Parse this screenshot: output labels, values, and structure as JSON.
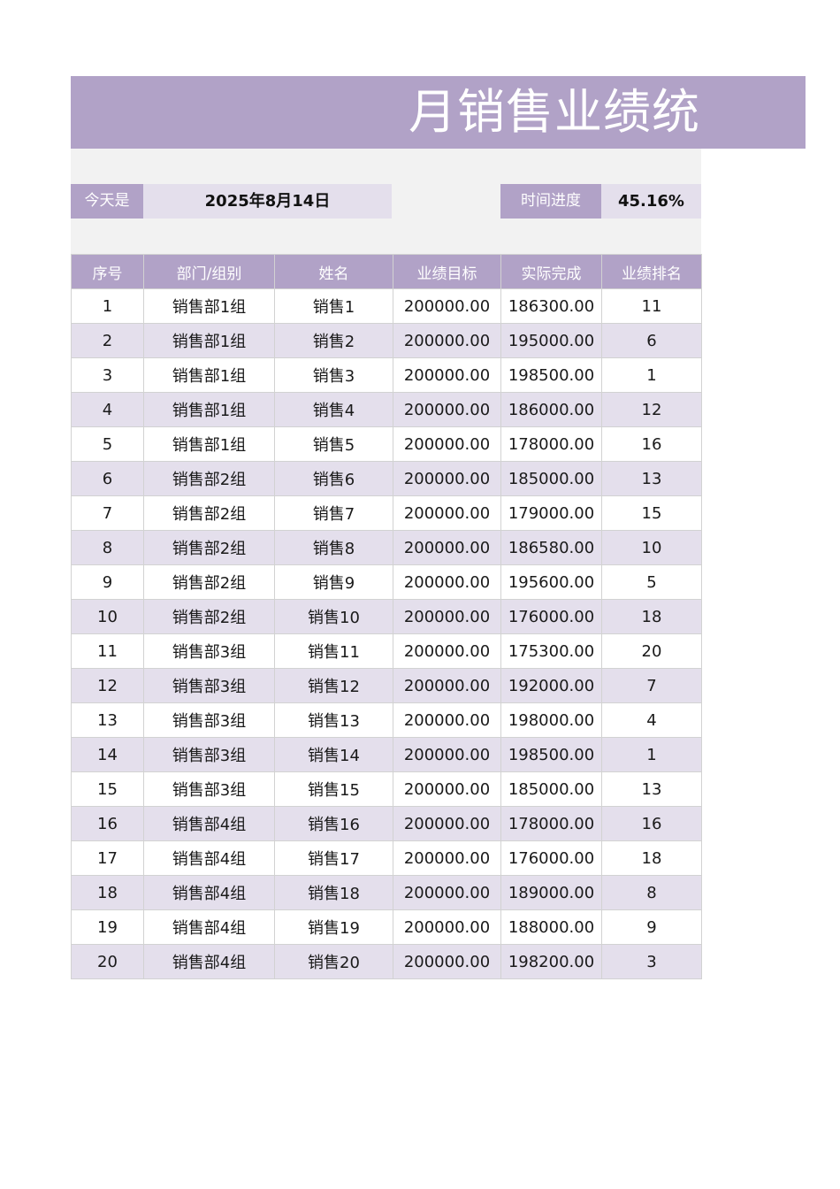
{
  "title": "月销售业绩统",
  "info": {
    "today_label": "今天是",
    "today_value": "2025年8月14日",
    "progress_label": "时间进度",
    "progress_value": "45.16%"
  },
  "table": {
    "headers": [
      "序号",
      "部门/组别",
      "姓名",
      "业绩目标",
      "实际完成",
      "业绩排名"
    ],
    "rows": [
      [
        "1",
        "销售部1组",
        "销售1",
        "200000.00",
        "186300.00",
        "11"
      ],
      [
        "2",
        "销售部1组",
        "销售2",
        "200000.00",
        "195000.00",
        "6"
      ],
      [
        "3",
        "销售部1组",
        "销售3",
        "200000.00",
        "198500.00",
        "1"
      ],
      [
        "4",
        "销售部1组",
        "销售4",
        "200000.00",
        "186000.00",
        "12"
      ],
      [
        "5",
        "销售部1组",
        "销售5",
        "200000.00",
        "178000.00",
        "16"
      ],
      [
        "6",
        "销售部2组",
        "销售6",
        "200000.00",
        "185000.00",
        "13"
      ],
      [
        "7",
        "销售部2组",
        "销售7",
        "200000.00",
        "179000.00",
        "15"
      ],
      [
        "8",
        "销售部2组",
        "销售8",
        "200000.00",
        "186580.00",
        "10"
      ],
      [
        "9",
        "销售部2组",
        "销售9",
        "200000.00",
        "195600.00",
        "5"
      ],
      [
        "10",
        "销售部2组",
        "销售10",
        "200000.00",
        "176000.00",
        "18"
      ],
      [
        "11",
        "销售部3组",
        "销售11",
        "200000.00",
        "175300.00",
        "20"
      ],
      [
        "12",
        "销售部3组",
        "销售12",
        "200000.00",
        "192000.00",
        "7"
      ],
      [
        "13",
        "销售部3组",
        "销售13",
        "200000.00",
        "198000.00",
        "4"
      ],
      [
        "14",
        "销售部3组",
        "销售14",
        "200000.00",
        "198500.00",
        "1"
      ],
      [
        "15",
        "销售部3组",
        "销售15",
        "200000.00",
        "185000.00",
        "13"
      ],
      [
        "16",
        "销售部4组",
        "销售16",
        "200000.00",
        "178000.00",
        "16"
      ],
      [
        "17",
        "销售部4组",
        "销售17",
        "200000.00",
        "176000.00",
        "18"
      ],
      [
        "18",
        "销售部4组",
        "销售18",
        "200000.00",
        "189000.00",
        "8"
      ],
      [
        "19",
        "销售部4组",
        "销售19",
        "200000.00",
        "188000.00",
        "9"
      ],
      [
        "20",
        "销售部4组",
        "销售20",
        "200000.00",
        "198200.00",
        "3"
      ]
    ]
  },
  "colors": {
    "header_bg": "#b1a2c7",
    "band_bg": "#e4dfec",
    "spacer_bg": "#f2f2f2"
  }
}
